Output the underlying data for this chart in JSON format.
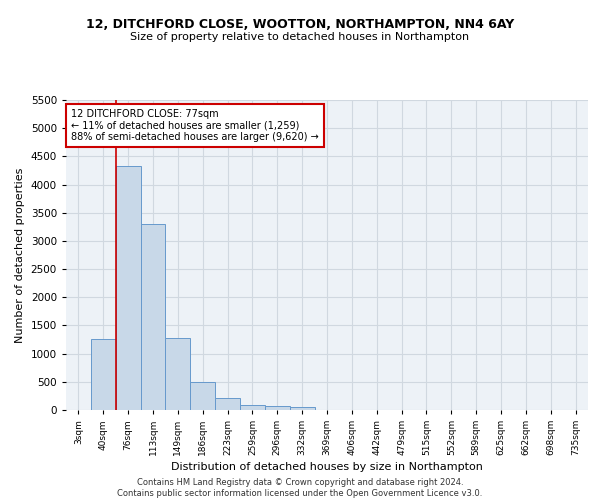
{
  "title_line1": "12, DITCHFORD CLOSE, WOOTTON, NORTHAMPTON, NN4 6AY",
  "title_line2": "Size of property relative to detached houses in Northampton",
  "xlabel": "Distribution of detached houses by size in Northampton",
  "ylabel": "Number of detached properties",
  "bar_categories": [
    "3sqm",
    "40sqm",
    "76sqm",
    "113sqm",
    "149sqm",
    "186sqm",
    "223sqm",
    "259sqm",
    "296sqm",
    "332sqm",
    "369sqm",
    "406sqm",
    "442sqm",
    "479sqm",
    "515sqm",
    "552sqm",
    "589sqm",
    "625sqm",
    "662sqm",
    "698sqm",
    "735sqm"
  ],
  "bar_heights": [
    0,
    1260,
    4330,
    3300,
    1280,
    490,
    210,
    85,
    65,
    55,
    0,
    0,
    0,
    0,
    0,
    0,
    0,
    0,
    0,
    0,
    0
  ],
  "bar_color": "#c8d8e8",
  "bar_edgecolor": "#6699cc",
  "property_bar_index": 2,
  "annotation_title": "12 DITCHFORD CLOSE: 77sqm",
  "annotation_line1": "← 11% of detached houses are smaller (1,259)",
  "annotation_line2": "88% of semi-detached houses are larger (9,620) →",
  "annotation_box_color": "#ffffff",
  "annotation_box_edgecolor": "#cc0000",
  "vline_color": "#cc0000",
  "ylim": [
    0,
    5500
  ],
  "yticks": [
    0,
    500,
    1000,
    1500,
    2000,
    2500,
    3000,
    3500,
    4000,
    4500,
    5000,
    5500
  ],
  "grid_color": "#d0d8e0",
  "bg_color": "#edf2f7",
  "footer_line1": "Contains HM Land Registry data © Crown copyright and database right 2024.",
  "footer_line2": "Contains public sector information licensed under the Open Government Licence v3.0."
}
